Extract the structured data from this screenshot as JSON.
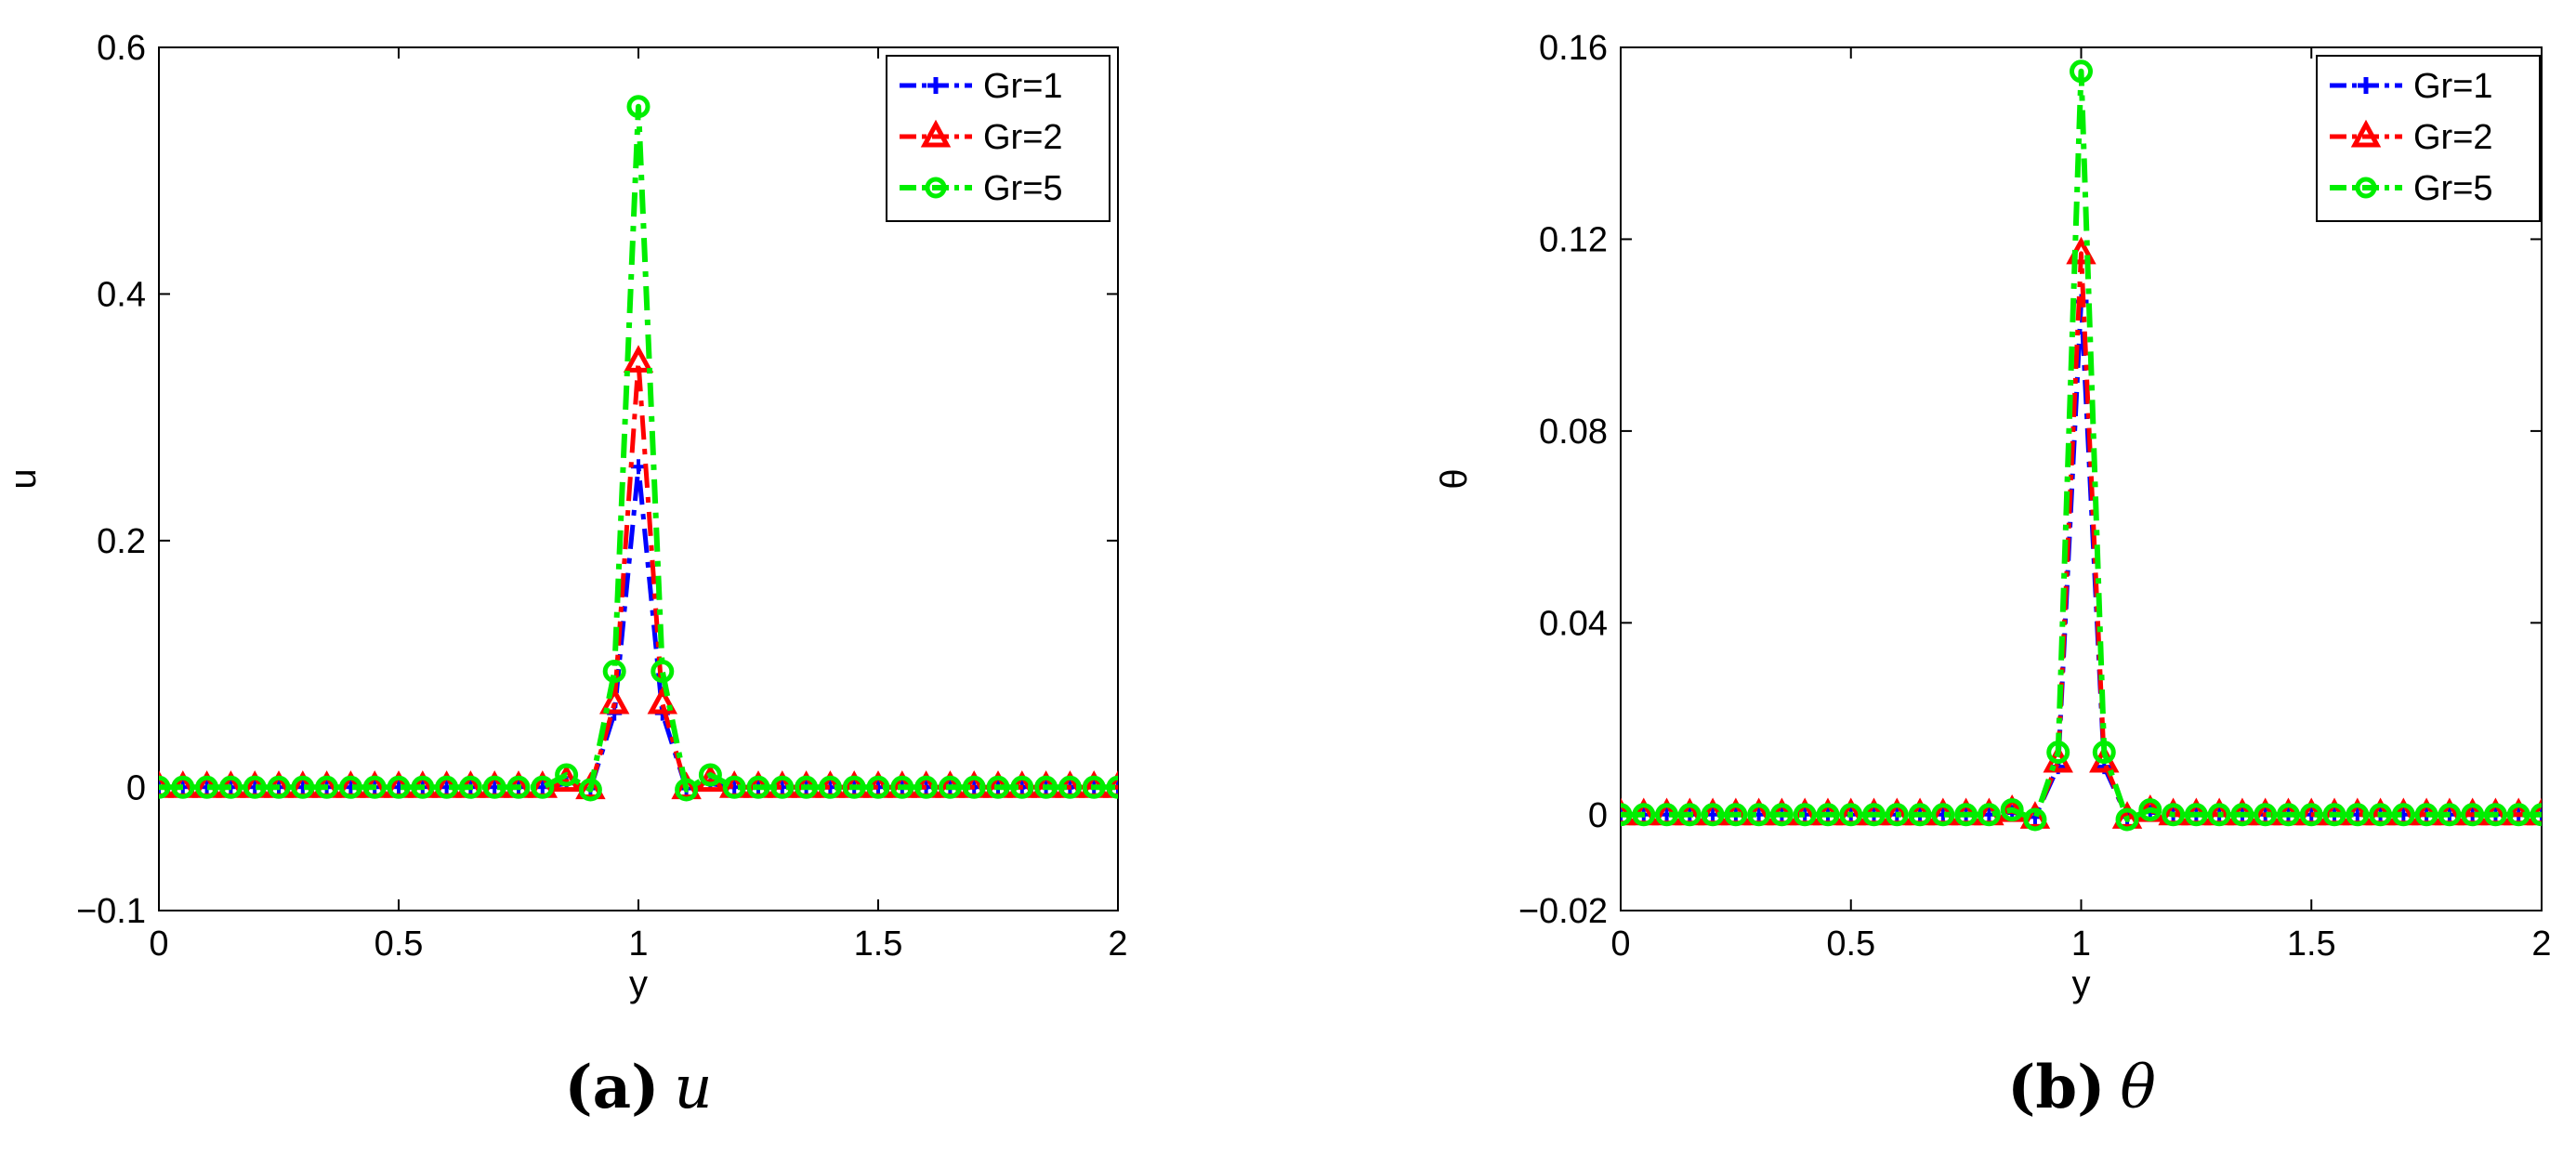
{
  "chart_data": [
    {
      "type": "line",
      "panel_caption": {
        "label": "(a)",
        "variable": "u"
      },
      "xlabel": "y",
      "ylabel": "u",
      "xlim": [
        0,
        2
      ],
      "ylim": [
        -0.1,
        0.6
      ],
      "xticks": [
        0,
        0.5,
        1,
        1.5,
        2
      ],
      "xtick_labels": [
        "0",
        "0.5",
        "1",
        "1.5",
        "2"
      ],
      "yticks": [
        -0.1,
        0,
        0.2,
        0.4,
        0.6
      ],
      "ytick_labels": [
        "−0.1",
        "0",
        "0.2",
        "0.4",
        "0.6"
      ],
      "grid": false,
      "legend_position": "top-right",
      "x": [
        0,
        0.05,
        0.1,
        0.15,
        0.2,
        0.25,
        0.3,
        0.35,
        0.4,
        0.45,
        0.5,
        0.55,
        0.6,
        0.65,
        0.7,
        0.75,
        0.8,
        0.85,
        0.9,
        0.95,
        1.0,
        1.05,
        1.1,
        1.15,
        1.2,
        1.25,
        1.3,
        1.35,
        1.4,
        1.45,
        1.5,
        1.55,
        1.6,
        1.65,
        1.7,
        1.75,
        1.8,
        1.85,
        1.9,
        1.95,
        2.0
      ],
      "series": [
        {
          "name": "Gr=1",
          "color": "#0000ff",
          "marker": "plus",
          "values": [
            0,
            0,
            0,
            0,
            0,
            0,
            0,
            0,
            0,
            0,
            0,
            0,
            0,
            0,
            0,
            0,
            0,
            0.003,
            -0.001,
            0.06,
            0.26,
            0.06,
            -0.001,
            0.003,
            0,
            0,
            0,
            0,
            0,
            0,
            0,
            0,
            0,
            0,
            0,
            0,
            0,
            0,
            0,
            0,
            0
          ]
        },
        {
          "name": "Gr=2",
          "color": "#ff0000",
          "marker": "triangle",
          "values": [
            0,
            0,
            0,
            0,
            0,
            0,
            0,
            0,
            0,
            0,
            0,
            0,
            0,
            0,
            0,
            0,
            0,
            0.005,
            -0.001,
            0.068,
            0.345,
            0.068,
            -0.001,
            0.005,
            0,
            0,
            0,
            0,
            0,
            0,
            0,
            0,
            0,
            0,
            0,
            0,
            0,
            0,
            0,
            0,
            0
          ]
        },
        {
          "name": "Gr=5",
          "color": "#00ee00",
          "marker": "circle",
          "values": [
            0,
            0,
            0,
            0,
            0,
            0,
            0,
            0,
            0,
            0,
            0,
            0,
            0,
            0,
            0,
            0,
            0,
            0.01,
            -0.002,
            0.094,
            0.552,
            0.094,
            -0.002,
            0.01,
            0,
            0,
            0,
            0,
            0,
            0,
            0,
            0,
            0,
            0,
            0,
            0,
            0,
            0,
            0,
            0,
            0
          ]
        }
      ]
    },
    {
      "type": "line",
      "panel_caption": {
        "label": "(b)",
        "variable": "θ"
      },
      "xlabel": "y",
      "ylabel": "θ",
      "xlim": [
        0,
        2
      ],
      "ylim": [
        -0.02,
        0.16
      ],
      "xticks": [
        0,
        0.5,
        1,
        1.5,
        2
      ],
      "xtick_labels": [
        "0",
        "0.5",
        "1",
        "1.5",
        "2"
      ],
      "yticks": [
        -0.02,
        0,
        0.04,
        0.08,
        0.12,
        0.16
      ],
      "ytick_labels": [
        "−0.02",
        "0",
        "0.04",
        "0.08",
        "0.12",
        "0.16"
      ],
      "grid": false,
      "legend_position": "top-right",
      "x": [
        0,
        0.05,
        0.1,
        0.15,
        0.2,
        0.25,
        0.3,
        0.35,
        0.4,
        0.45,
        0.5,
        0.55,
        0.6,
        0.65,
        0.7,
        0.75,
        0.8,
        0.85,
        0.9,
        0.95,
        1.0,
        1.05,
        1.1,
        1.15,
        1.2,
        1.25,
        1.3,
        1.35,
        1.4,
        1.45,
        1.5,
        1.55,
        1.6,
        1.65,
        1.7,
        1.75,
        1.8,
        1.85,
        1.9,
        1.95,
        2.0
      ],
      "series": [
        {
          "name": "Gr=1",
          "color": "#0000ff",
          "marker": "plus",
          "values": [
            0,
            0,
            0,
            0,
            0,
            0,
            0,
            0,
            0,
            0,
            0,
            0,
            0,
            0,
            0,
            0,
            0,
            0.0005,
            -0.0005,
            0.01,
            0.107,
            0.01,
            -0.0005,
            0.0005,
            0,
            0,
            0,
            0,
            0,
            0,
            0,
            0,
            0,
            0,
            0,
            0,
            0,
            0,
            0,
            0,
            0
          ]
        },
        {
          "name": "Gr=2",
          "color": "#ff0000",
          "marker": "triangle",
          "values": [
            0,
            0,
            0,
            0,
            0,
            0,
            0,
            0,
            0,
            0,
            0,
            0,
            0,
            0,
            0,
            0,
            0,
            0.0007,
            -0.0007,
            0.011,
            0.117,
            0.011,
            -0.0007,
            0.0007,
            0,
            0,
            0,
            0,
            0,
            0,
            0,
            0,
            0,
            0,
            0,
            0,
            0,
            0,
            0,
            0,
            0
          ]
        },
        {
          "name": "Gr=5",
          "color": "#00ee00",
          "marker": "circle",
          "values": [
            0,
            0,
            0,
            0,
            0,
            0,
            0,
            0,
            0,
            0,
            0,
            0,
            0,
            0,
            0,
            0,
            0,
            0.001,
            -0.001,
            0.013,
            0.155,
            0.013,
            -0.001,
            0.001,
            0,
            0,
            0,
            0,
            0,
            0,
            0,
            0,
            0,
            0,
            0,
            0,
            0,
            0,
            0,
            0,
            0
          ]
        }
      ]
    }
  ]
}
